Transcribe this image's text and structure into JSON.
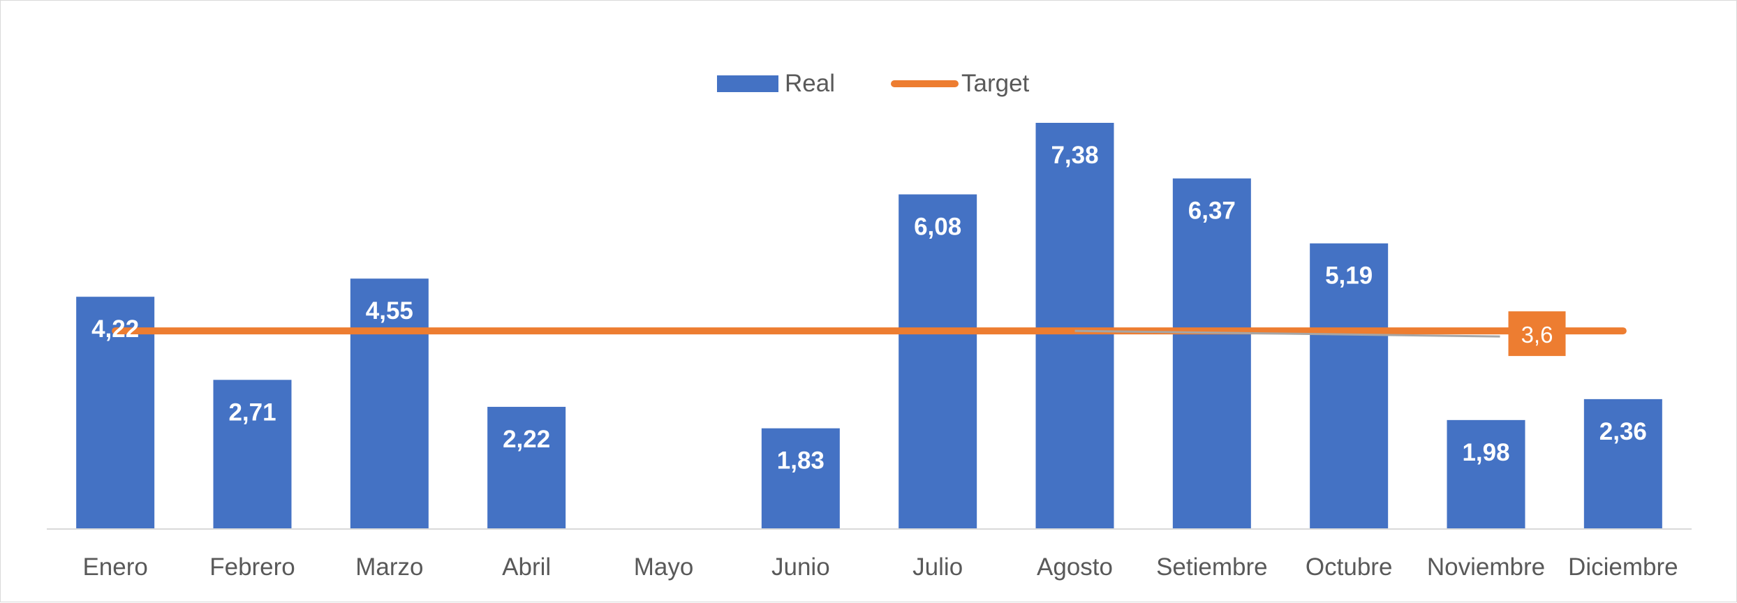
{
  "chart_data": {
    "type": "bar",
    "title": "",
    "xlabel": "",
    "ylabel": "",
    "categories": [
      "Enero",
      "Febrero",
      "Marzo",
      "Abril",
      "Mayo",
      "Junio",
      "Julio",
      "Agosto",
      "Setiembre",
      "Octubre",
      "Noviembre",
      "Diciembre"
    ],
    "series": [
      {
        "name": "Real",
        "type": "bar",
        "color": "#4472C4",
        "values": [
          4.22,
          2.71,
          4.55,
          2.22,
          null,
          1.83,
          6.08,
          7.38,
          6.37,
          5.19,
          1.98,
          2.36
        ],
        "labels": [
          "4,22",
          "2,71",
          "4,55",
          "2,22",
          "",
          "1,83",
          "6,08",
          "7,38",
          "6,37",
          "5,19",
          "1,98",
          "2,36"
        ]
      },
      {
        "name": "Target",
        "type": "line",
        "color": "#ED7D31",
        "values": [
          3.6,
          3.6,
          3.6,
          3.6,
          3.6,
          3.6,
          3.6,
          3.6,
          3.6,
          3.6,
          3.6,
          3.6
        ],
        "annotation": "3,6"
      }
    ],
    "ylim": [
      0,
      7.6
    ],
    "grid": false,
    "legend_position": "top-center"
  }
}
